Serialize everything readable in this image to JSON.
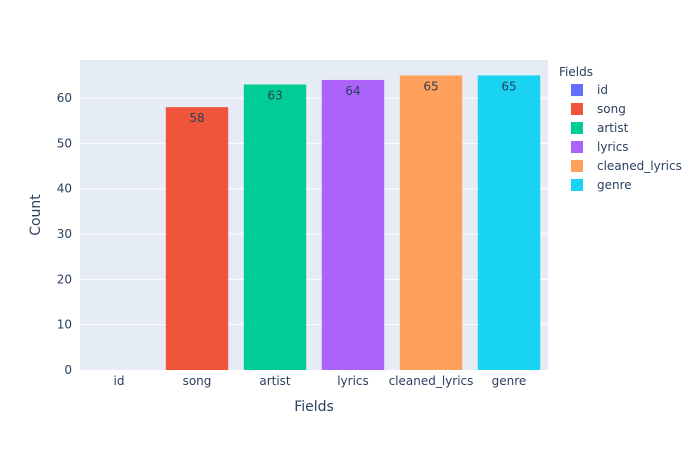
{
  "chart_data": {
    "type": "bar",
    "categories": [
      "id",
      "song",
      "artist",
      "lyrics",
      "cleaned_lyrics",
      "genre"
    ],
    "values": [
      0,
      58,
      63,
      64,
      65,
      65
    ],
    "colors": [
      "#636efa",
      "#EF553B",
      "#00cc96",
      "#ab63fa",
      "#FFA15A",
      "#19d3f3"
    ],
    "xlabel": "Fields",
    "ylabel": "Count",
    "ylim": [
      0,
      68.4
    ],
    "yticks": [
      0,
      10,
      20,
      30,
      40,
      50,
      60
    ],
    "grid": true,
    "legend": {
      "title": "Fields",
      "placement": "top-right",
      "entries": [
        "id",
        "song",
        "artist",
        "lyrics",
        "cleaned_lyrics",
        "genre"
      ]
    }
  }
}
